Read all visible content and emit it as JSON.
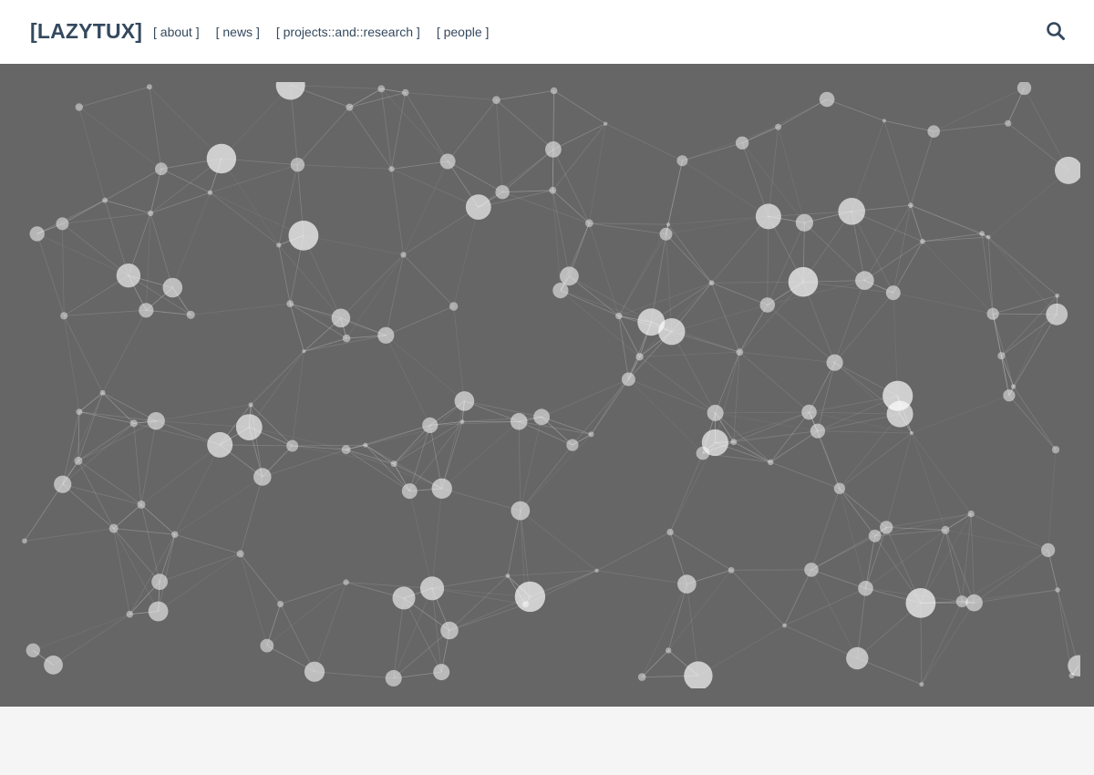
{
  "header": {
    "brand": "[LAZYTUX]",
    "nav": [
      {
        "label": "[ about ]"
      },
      {
        "label": "[ news ]"
      },
      {
        "label": "[ projects::and::research ]"
      },
      {
        "label": "[ people ]"
      }
    ],
    "search_icon": "search-icon"
  },
  "hero": {
    "background_color": "#666666",
    "node_color": "#ffffff"
  },
  "colors": {
    "brand_text": "#34495e",
    "page_background": "#f5f5f5"
  }
}
